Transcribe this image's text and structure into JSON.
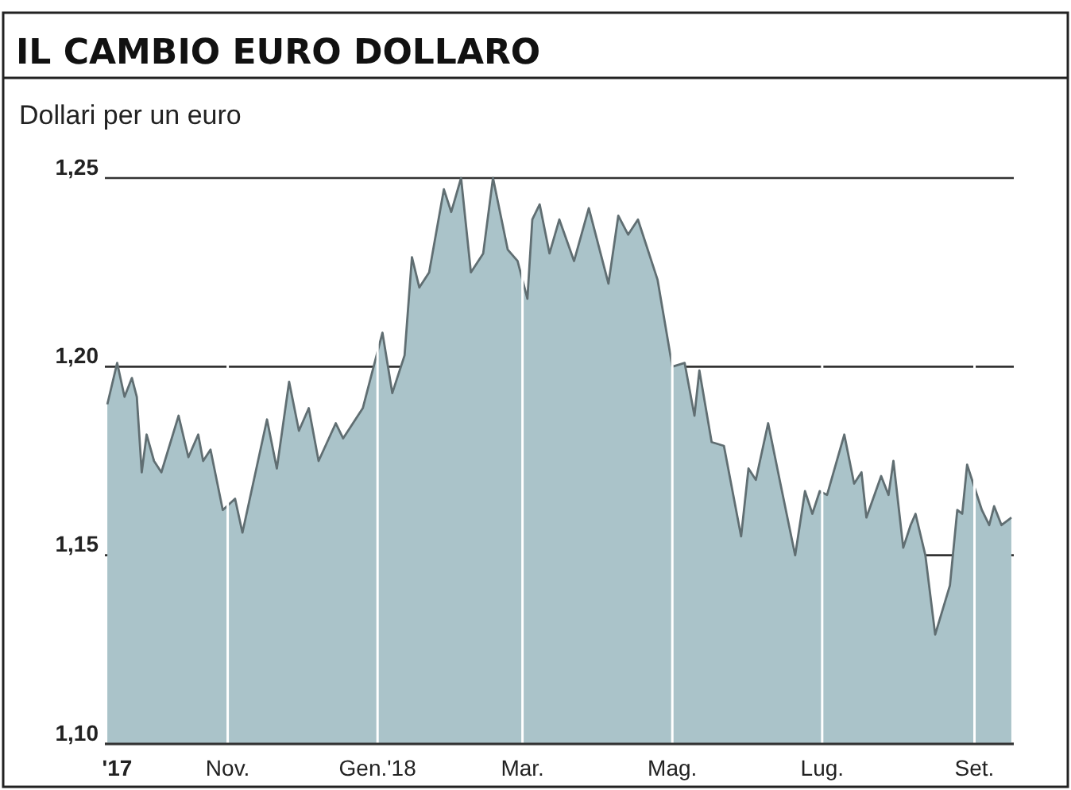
{
  "chart_data": {
    "type": "area",
    "title": "IL CAMBIO EURO DOLLARO",
    "subtitle": "Dollari per un euro",
    "x": [
      "2017-09-13",
      "2017-09-17",
      "2017-09-20",
      "2017-09-23",
      "2017-09-25",
      "2017-09-27",
      "2017-09-29",
      "2017-10-02",
      "2017-10-05",
      "2017-10-12",
      "2017-10-16",
      "2017-10-20",
      "2017-10-22",
      "2017-10-25",
      "2017-10-30",
      "2017-11-04",
      "2017-11-07",
      "2017-11-17",
      "2017-11-21",
      "2017-11-26",
      "2017-11-30",
      "2017-12-04",
      "2017-12-08",
      "2017-12-15",
      "2017-12-18",
      "2017-12-26",
      "2018-01-03",
      "2018-01-07",
      "2018-01-12",
      "2018-01-15",
      "2018-01-18",
      "2018-01-22",
      "2018-01-28",
      "2018-01-31",
      "2018-02-04",
      "2018-02-08",
      "2018-02-13",
      "2018-02-17",
      "2018-02-23",
      "2018-02-27",
      "2018-03-03",
      "2018-03-05",
      "2018-03-08",
      "2018-03-12",
      "2018-03-16",
      "2018-03-22",
      "2018-03-28",
      "2018-04-05",
      "2018-04-09",
      "2018-04-13",
      "2018-04-17",
      "2018-04-25",
      "2018-05-01",
      "2018-05-06",
      "2018-05-10",
      "2018-05-12",
      "2018-05-17",
      "2018-05-22",
      "2018-05-29",
      "2018-06-01",
      "2018-06-04",
      "2018-06-09",
      "2018-06-14",
      "2018-06-20",
      "2018-06-24",
      "2018-06-27",
      "2018-06-30",
      "2018-07-03",
      "2018-07-10",
      "2018-07-14",
      "2018-07-17",
      "2018-07-19",
      "2018-07-25",
      "2018-07-28",
      "2018-07-30",
      "2018-08-03",
      "2018-08-06",
      "2018-08-08",
      "2018-08-12",
      "2018-08-16",
      "2018-08-22",
      "2018-08-25",
      "2018-08-27",
      "2018-08-29",
      "2018-09-04",
      "2018-09-07",
      "2018-09-09",
      "2018-09-12",
      "2018-09-16"
    ],
    "series": [
      {
        "color": "#aac3c9",
        "values": [
          1.19,
          1.201,
          1.192,
          1.197,
          1.192,
          1.172,
          1.182,
          1.175,
          1.172,
          1.187,
          1.176,
          1.182,
          1.175,
          1.178,
          1.162,
          1.165,
          1.156,
          1.186,
          1.173,
          1.196,
          1.183,
          1.189,
          1.175,
          1.185,
          1.181,
          1.189,
          1.209,
          1.193,
          1.203,
          1.229,
          1.221,
          1.225,
          1.247,
          1.241,
          1.25,
          1.225,
          1.23,
          1.25,
          1.231,
          1.228,
          1.218,
          1.239,
          1.243,
          1.23,
          1.239,
          1.228,
          1.242,
          1.222,
          1.24,
          1.235,
          1.239,
          1.223,
          1.2,
          1.201,
          1.187,
          1.199,
          1.18,
          1.179,
          1.155,
          1.173,
          1.17,
          1.185,
          1.169,
          1.15,
          1.167,
          1.161,
          1.167,
          1.166,
          1.182,
          1.169,
          1.172,
          1.16,
          1.171,
          1.166,
          1.175,
          1.152,
          1.158,
          1.161,
          1.15,
          1.129,
          1.142,
          1.162,
          1.161,
          1.174,
          1.162,
          1.158,
          1.163,
          1.158,
          1.16
        ]
      }
    ],
    "xlim": [
      "2017-09-12",
      "2018-09-17"
    ],
    "xticks": [
      {
        "value": "2017-09-17",
        "label": "'17"
      },
      {
        "value": "2017-11-01",
        "label": "Nov."
      },
      {
        "value": "2018-01-01",
        "label": "Gen.'18"
      },
      {
        "value": "2018-03-01",
        "label": "Mar."
      },
      {
        "value": "2018-05-01",
        "label": "Mag."
      },
      {
        "value": "2018-07-01",
        "label": "Lug."
      },
      {
        "value": "2018-09-01",
        "label": "Set."
      }
    ],
    "ylim": [
      1.1,
      1.25
    ],
    "yticks": [
      {
        "value": 1.1,
        "label": "1,10"
      },
      {
        "value": 1.15,
        "label": "1,15"
      },
      {
        "value": 1.2,
        "label": "1,20"
      },
      {
        "value": 1.25,
        "label": "1,25"
      }
    ],
    "grid": true
  }
}
